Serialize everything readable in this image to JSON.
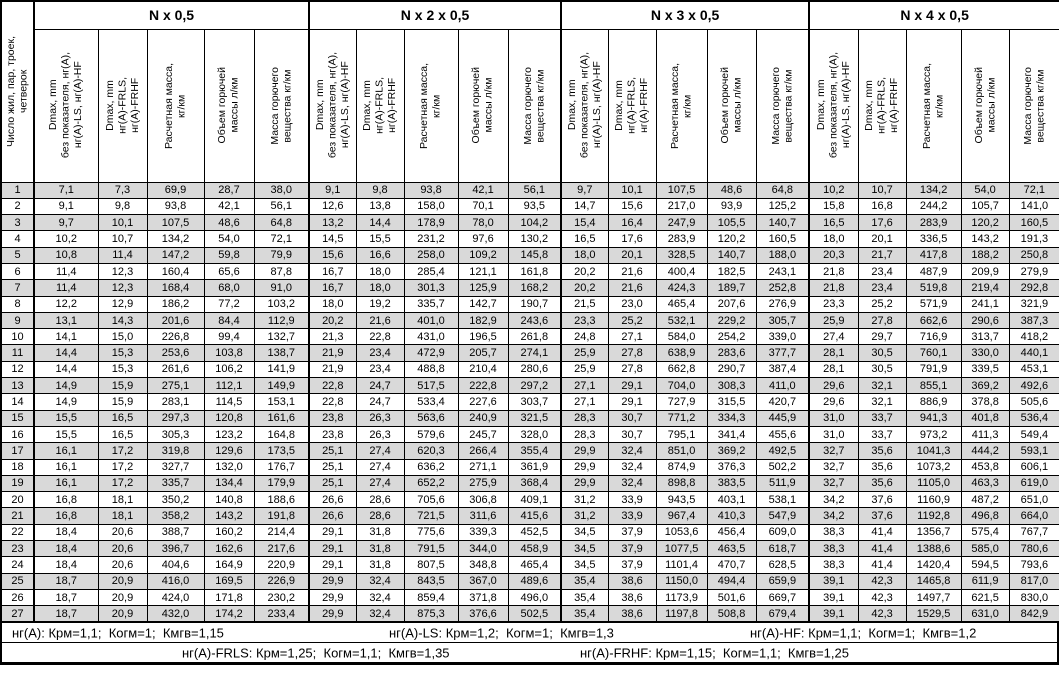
{
  "table": {
    "corner_header": "Число жил, пар, троек,\nчетверок",
    "groups": [
      "N х 0,5",
      "N х 2 х 0,5",
      "N х 3 х 0,5",
      "N х 4 х 0,5"
    ],
    "subheaders": [
      "Dmax, mm\nбез показателя, нг(А),\nнг(А)-LS, нг(А)-HF",
      "Dmax, mm\nнг(А)-FRLS,\nнг(А)-FRHF",
      "Расчетная масса,\nкг/км",
      "Объем горючей\nмассы л/км",
      "Масса горючего\nвещества кг/км"
    ],
    "rows": [
      [
        "1",
        "7,1",
        "7,3",
        "69,9",
        "28,7",
        "38,0",
        "9,1",
        "9,8",
        "93,8",
        "42,1",
        "56,1",
        "9,7",
        "10,1",
        "107,5",
        "48,6",
        "64,8",
        "10,2",
        "10,7",
        "134,2",
        "54,0",
        "72,1"
      ],
      [
        "2",
        "9,1",
        "9,8",
        "93,8",
        "42,1",
        "56,1",
        "12,6",
        "13,8",
        "158,0",
        "70,1",
        "93,5",
        "14,7",
        "15,6",
        "217,0",
        "93,9",
        "125,2",
        "15,8",
        "16,8",
        "244,2",
        "105,7",
        "141,0"
      ],
      [
        "3",
        "9,7",
        "10,1",
        "107,5",
        "48,6",
        "64,8",
        "13,2",
        "14,4",
        "178,9",
        "78,0",
        "104,2",
        "15,4",
        "16,4",
        "247,9",
        "105,5",
        "140,7",
        "16,5",
        "17,6",
        "283,9",
        "120,2",
        "160,5"
      ],
      [
        "4",
        "10,2",
        "10,7",
        "134,2",
        "54,0",
        "72,1",
        "14,5",
        "15,5",
        "231,2",
        "97,6",
        "130,2",
        "16,5",
        "17,6",
        "283,9",
        "120,2",
        "160,5",
        "18,0",
        "20,1",
        "336,5",
        "143,2",
        "191,3"
      ],
      [
        "5",
        "10,8",
        "11,4",
        "147,2",
        "59,8",
        "79,9",
        "15,6",
        "16,6",
        "258,0",
        "109,2",
        "145,8",
        "18,0",
        "20,1",
        "328,5",
        "140,7",
        "188,0",
        "20,3",
        "21,7",
        "417,8",
        "188,2",
        "250,8"
      ],
      [
        "6",
        "11,4",
        "12,3",
        "160,4",
        "65,6",
        "87,8",
        "16,7",
        "18,0",
        "285,4",
        "121,1",
        "161,8",
        "20,2",
        "21,6",
        "400,4",
        "182,5",
        "243,1",
        "21,8",
        "23,4",
        "487,9",
        "209,9",
        "279,9"
      ],
      [
        "7",
        "11,4",
        "12,3",
        "168,4",
        "68,0",
        "91,0",
        "16,7",
        "18,0",
        "301,3",
        "125,9",
        "168,2",
        "20,2",
        "21,6",
        "424,3",
        "189,7",
        "252,8",
        "21,8",
        "23,4",
        "519,8",
        "219,4",
        "292,8"
      ],
      [
        "8",
        "12,2",
        "12,9",
        "186,2",
        "77,2",
        "103,2",
        "18,0",
        "19,2",
        "335,7",
        "142,7",
        "190,7",
        "21,5",
        "23,0",
        "465,4",
        "207,6",
        "276,9",
        "23,3",
        "25,2",
        "571,9",
        "241,1",
        "321,9"
      ],
      [
        "9",
        "13,1",
        "14,3",
        "201,6",
        "84,4",
        "112,9",
        "20,2",
        "21,6",
        "401,0",
        "182,9",
        "243,6",
        "23,3",
        "25,2",
        "532,1",
        "229,2",
        "305,7",
        "25,9",
        "27,8",
        "662,6",
        "290,6",
        "387,3"
      ],
      [
        "10",
        "14,1",
        "15,0",
        "226,8",
        "99,4",
        "132,7",
        "21,3",
        "22,8",
        "431,0",
        "196,5",
        "261,8",
        "24,8",
        "27,1",
        "584,0",
        "254,2",
        "339,0",
        "27,4",
        "29,7",
        "716,9",
        "313,7",
        "418,2"
      ],
      [
        "11",
        "14,4",
        "15,3",
        "253,6",
        "103,8",
        "138,7",
        "21,9",
        "23,4",
        "472,9",
        "205,7",
        "274,1",
        "25,9",
        "27,8",
        "638,9",
        "283,6",
        "377,7",
        "28,1",
        "30,5",
        "760,1",
        "330,0",
        "440,1"
      ],
      [
        "12",
        "14,4",
        "15,3",
        "261,6",
        "106,2",
        "141,9",
        "21,9",
        "23,4",
        "488,8",
        "210,4",
        "280,6",
        "25,9",
        "27,8",
        "662,8",
        "290,7",
        "387,4",
        "28,1",
        "30,5",
        "791,9",
        "339,5",
        "453,1"
      ],
      [
        "13",
        "14,9",
        "15,9",
        "275,1",
        "112,1",
        "149,9",
        "22,8",
        "24,7",
        "517,5",
        "222,8",
        "297,2",
        "27,1",
        "29,1",
        "704,0",
        "308,3",
        "411,0",
        "29,6",
        "32,1",
        "855,1",
        "369,2",
        "492,6"
      ],
      [
        "14",
        "14,9",
        "15,9",
        "283,1",
        "114,5",
        "153,1",
        "22,8",
        "24,7",
        "533,4",
        "227,6",
        "303,7",
        "27,1",
        "29,1",
        "727,9",
        "315,5",
        "420,7",
        "29,6",
        "32,1",
        "886,9",
        "378,8",
        "505,6"
      ],
      [
        "15",
        "15,5",
        "16,5",
        "297,3",
        "120,8",
        "161,6",
        "23,8",
        "26,3",
        "563,6",
        "240,9",
        "321,5",
        "28,3",
        "30,7",
        "771,2",
        "334,3",
        "445,9",
        "31,0",
        "33,7",
        "941,3",
        "401,8",
        "536,4"
      ],
      [
        "16",
        "15,5",
        "16,5",
        "305,3",
        "123,2",
        "164,8",
        "23,8",
        "26,3",
        "579,6",
        "245,7",
        "328,0",
        "28,3",
        "30,7",
        "795,1",
        "341,4",
        "455,6",
        "31,0",
        "33,7",
        "973,2",
        "411,3",
        "549,4"
      ],
      [
        "17",
        "16,1",
        "17,2",
        "319,8",
        "129,6",
        "173,5",
        "25,1",
        "27,4",
        "620,3",
        "266,4",
        "355,4",
        "29,9",
        "32,4",
        "851,0",
        "369,2",
        "492,5",
        "32,7",
        "35,6",
        "1041,3",
        "444,2",
        "593,1"
      ],
      [
        "18",
        "16,1",
        "17,2",
        "327,7",
        "132,0",
        "176,7",
        "25,1",
        "27,4",
        "636,2",
        "271,1",
        "361,9",
        "29,9",
        "32,4",
        "874,9",
        "376,3",
        "502,2",
        "32,7",
        "35,6",
        "1073,2",
        "453,8",
        "606,1"
      ],
      [
        "19",
        "16,1",
        "17,2",
        "335,7",
        "134,4",
        "179,9",
        "25,1",
        "27,4",
        "652,2",
        "275,9",
        "368,4",
        "29,9",
        "32,4",
        "898,8",
        "383,5",
        "511,9",
        "32,7",
        "35,6",
        "1105,0",
        "463,3",
        "619,0"
      ],
      [
        "20",
        "16,8",
        "18,1",
        "350,2",
        "140,8",
        "188,6",
        "26,6",
        "28,6",
        "705,6",
        "306,8",
        "409,1",
        "31,2",
        "33,9",
        "943,5",
        "403,1",
        "538,1",
        "34,2",
        "37,6",
        "1160,9",
        "487,2",
        "651,0"
      ],
      [
        "21",
        "16,8",
        "18,1",
        "358,2",
        "143,2",
        "191,8",
        "26,6",
        "28,6",
        "721,5",
        "311,6",
        "415,6",
        "31,2",
        "33,9",
        "967,4",
        "410,3",
        "547,9",
        "34,2",
        "37,6",
        "1192,8",
        "496,8",
        "664,0"
      ],
      [
        "22",
        "18,4",
        "20,6",
        "388,7",
        "160,2",
        "214,4",
        "29,1",
        "31,8",
        "775,6",
        "339,3",
        "452,5",
        "34,5",
        "37,9",
        "1053,6",
        "456,4",
        "609,0",
        "38,3",
        "41,4",
        "1356,7",
        "575,4",
        "767,7"
      ],
      [
        "23",
        "18,4",
        "20,6",
        "396,7",
        "162,6",
        "217,6",
        "29,1",
        "31,8",
        "791,5",
        "344,0",
        "458,9",
        "34,5",
        "37,9",
        "1077,5",
        "463,5",
        "618,7",
        "38,3",
        "41,4",
        "1388,6",
        "585,0",
        "780,6"
      ],
      [
        "24",
        "18,4",
        "20,6",
        "404,6",
        "164,9",
        "220,9",
        "29,1",
        "31,8",
        "807,5",
        "348,8",
        "465,4",
        "34,5",
        "37,9",
        "1101,4",
        "470,7",
        "628,5",
        "38,3",
        "41,4",
        "1420,4",
        "594,5",
        "793,6"
      ],
      [
        "25",
        "18,7",
        "20,9",
        "416,0",
        "169,5",
        "226,9",
        "29,9",
        "32,4",
        "843,5",
        "367,0",
        "489,6",
        "35,4",
        "38,6",
        "1150,0",
        "494,4",
        "659,9",
        "39,1",
        "42,3",
        "1465,8",
        "611,9",
        "817,0"
      ],
      [
        "26",
        "18,7",
        "20,9",
        "424,0",
        "171,8",
        "230,2",
        "29,9",
        "32,4",
        "859,4",
        "371,8",
        "496,0",
        "35,4",
        "38,6",
        "1173,9",
        "501,6",
        "669,7",
        "39,1",
        "42,3",
        "1497,7",
        "621,5",
        "830,0"
      ],
      [
        "27",
        "18,7",
        "20,9",
        "432,0",
        "174,2",
        "233,4",
        "29,9",
        "32,4",
        "875,3",
        "376,6",
        "502,5",
        "35,4",
        "38,6",
        "1197,8",
        "508,8",
        "679,4",
        "39,1",
        "42,3",
        "1529,5",
        "631,0",
        "842,9"
      ]
    ]
  },
  "footer": {
    "line1": [
      "нг(А): Крм=1,1;  Когм=1;  Кмгв=1,15",
      "нг(А)-LS: Крм=1,2;  Когм=1;  Кмгв=1,3",
      "нг(А)-HF: Крм=1,1;  Когм=1;  Кмгв=1,2"
    ],
    "line2": [
      "нг(А)-FRLS: Крм=1,25;  Когм=1,1;  Кмгв=1,35",
      "нг(А)-FRHF: Крм=1,15;  Когм=1,1;  Кмгв=1,25"
    ]
  },
  "colors": {
    "row_shade": "#d9d9d9",
    "border": "#000000",
    "background": "#ffffff"
  }
}
